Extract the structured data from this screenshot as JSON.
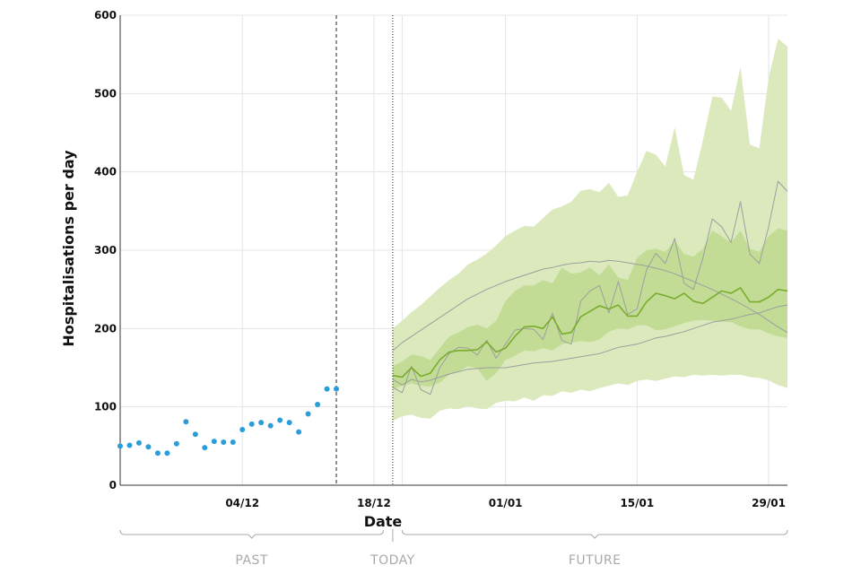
{
  "chart_data": {
    "type": "line",
    "title": "",
    "xlabel": "Date",
    "ylabel": "Hospitalisations per day",
    "ylim": [
      0,
      600
    ],
    "y_ticks": [
      0,
      100,
      200,
      300,
      400,
      500,
      600
    ],
    "x_start": "2021-11-21",
    "x_end": "2022-01-31",
    "x_ticks": [
      {
        "date": "2021-12-04",
        "label": "04/12"
      },
      {
        "date": "2021-12-18",
        "label": "18/12"
      },
      {
        "date": "2022-01-01",
        "label": "01/01"
      },
      {
        "date": "2022-01-15",
        "label": "15/01"
      },
      {
        "date": "2022-01-29",
        "label": "29/01"
      }
    ],
    "extra_gridlines": [
      "2021-12-21"
    ],
    "grid": true,
    "markers": [
      {
        "date": "2021-12-14",
        "style": "dashed"
      },
      {
        "date": "2021-12-20",
        "style": "dotted"
      }
    ],
    "periods": [
      {
        "label": "PAST",
        "from": "2021-11-21",
        "to": "2021-12-19"
      },
      {
        "label": "TODAY",
        "at": "2021-12-20"
      },
      {
        "label": "FUTURE",
        "from": "2021-12-21",
        "to": "2022-01-31"
      }
    ],
    "colors": {
      "observed": "#2b9ed8",
      "outer_band": "#dbe9bd",
      "inner_band": "#c2dc96",
      "median": "#7aad2e",
      "scenarios": "#9e9e9e",
      "grid": "#e4e4e4"
    },
    "observed": {
      "dates": [
        "2021-11-21",
        "2021-11-22",
        "2021-11-23",
        "2021-11-24",
        "2021-11-25",
        "2021-11-26",
        "2021-11-27",
        "2021-11-28",
        "2021-11-29",
        "2021-11-30",
        "2021-12-01",
        "2021-12-02",
        "2021-12-03",
        "2021-12-04",
        "2021-12-05",
        "2021-12-06",
        "2021-12-07",
        "2021-12-08",
        "2021-12-09",
        "2021-12-10",
        "2021-12-11",
        "2021-12-12",
        "2021-12-13",
        "2021-12-14"
      ],
      "values": [
        50,
        51,
        54,
        49,
        41,
        41,
        53,
        81,
        65,
        48,
        56,
        55,
        55,
        71,
        78,
        80,
        76,
        83,
        80,
        68,
        91,
        103,
        123,
        123
      ]
    },
    "forecast": {
      "start": "2021-12-20",
      "outer_low": [
        82,
        88,
        90,
        86,
        85,
        95,
        98,
        97,
        101,
        98,
        97,
        105,
        108,
        107,
        112,
        108,
        115,
        114,
        120,
        118,
        122,
        120,
        124,
        127,
        130,
        128,
        133,
        135,
        133,
        136,
        139,
        138,
        141,
        140,
        141,
        140,
        141,
        141,
        138,
        137,
        134,
        128,
        124
      ],
      "outer_high": [
        200,
        210,
        221,
        230,
        241,
        252,
        262,
        270,
        282,
        288,
        296,
        306,
        318,
        325,
        331,
        330,
        341,
        352,
        356,
        362,
        376,
        378,
        374,
        386,
        368,
        370,
        400,
        427,
        422,
        407,
        457,
        396,
        390,
        440,
        496,
        495,
        478,
        534,
        435,
        430,
        520,
        570,
        560
      ],
      "inner_low": [
        123,
        127,
        130,
        127,
        126,
        131,
        141,
        145,
        152,
        149,
        133,
        143,
        160,
        165,
        172,
        171,
        175,
        172,
        180,
        182,
        184,
        183,
        186,
        196,
        200,
        199,
        204,
        204,
        198,
        199,
        203,
        207,
        210,
        211,
        210,
        209,
        208,
        203,
        199,
        199,
        194,
        190,
        188
      ],
      "inner_high": [
        152,
        158,
        167,
        165,
        160,
        175,
        190,
        195,
        202,
        205,
        200,
        210,
        235,
        248,
        255,
        255,
        262,
        258,
        278,
        270,
        272,
        278,
        268,
        282,
        265,
        262,
        290,
        300,
        302,
        298,
        312,
        295,
        292,
        302,
        325,
        318,
        310,
        325,
        302,
        298,
        318,
        328,
        325
      ],
      "median": [
        140,
        138,
        150,
        139,
        143,
        160,
        170,
        172,
        172,
        173,
        183,
        170,
        175,
        190,
        202,
        203,
        200,
        215,
        193,
        195,
        215,
        222,
        229,
        225,
        230,
        216,
        216,
        234,
        245,
        242,
        238,
        245,
        235,
        232,
        240,
        248,
        245,
        252,
        234,
        234,
        240,
        250,
        248
      ],
      "scenarios": [
        [
          135,
          128,
          135,
          132,
          134,
          138,
          142,
          145,
          148,
          149,
          150,
          150,
          150,
          152,
          154,
          156,
          157,
          158,
          160,
          162,
          164,
          166,
          168,
          172,
          176,
          178,
          180,
          184,
          188,
          190,
          193,
          196,
          200,
          204,
          208,
          210,
          212,
          215,
          218,
          220,
          224,
          228,
          230
        ],
        [
          172,
          182,
          190,
          198,
          206,
          214,
          222,
          230,
          238,
          244,
          250,
          255,
          260,
          264,
          268,
          272,
          276,
          278,
          281,
          283,
          284,
          286,
          285,
          287,
          286,
          284,
          282,
          280,
          277,
          274,
          270,
          265,
          260,
          255,
          250,
          244,
          238,
          232,
          225,
          218,
          210,
          202,
          195
        ],
        [
          125,
          118,
          152,
          122,
          116,
          150,
          168,
          176,
          175,
          166,
          185,
          162,
          180,
          198,
          200,
          199,
          186,
          220,
          185,
          180,
          235,
          248,
          255,
          220,
          260,
          218,
          225,
          275,
          296,
          283,
          315,
          258,
          250,
          290,
          340,
          330,
          310,
          362,
          295,
          283,
          330,
          388,
          375
        ]
      ]
    }
  }
}
